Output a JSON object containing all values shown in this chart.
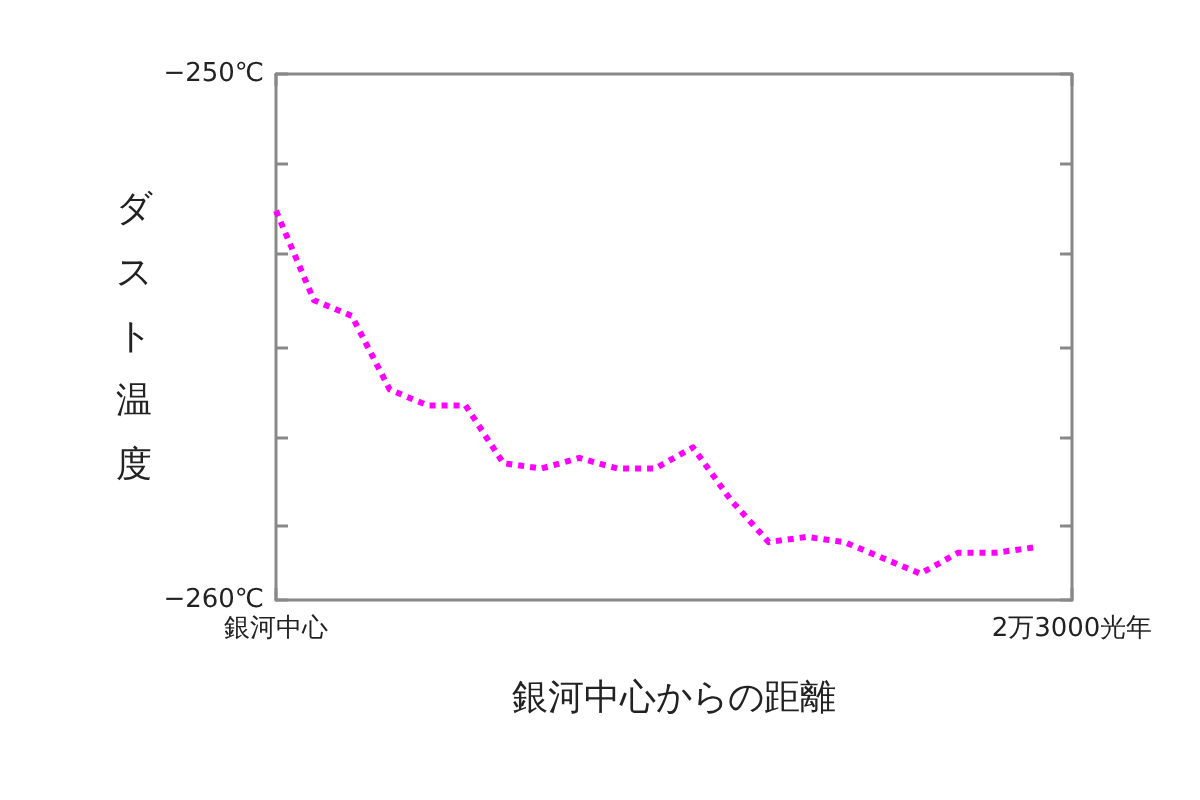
{
  "chart_data": {
    "type": "line",
    "xlabel": "銀河中心からの距離",
    "ylabel": "ダスト温度",
    "categories": [
      "銀河中心",
      null,
      null,
      null,
      null,
      null,
      null,
      null,
      null,
      null,
      null,
      null,
      null,
      null,
      null,
      null,
      null,
      null,
      null,
      null,
      null,
      "2万3000光年"
    ],
    "series": [
      {
        "color": "#ff00ff",
        "values": [
          -252.6,
          -254.3,
          -254.6,
          -256.0,
          -256.3,
          -256.3,
          -257.4,
          -257.5,
          -257.3,
          -257.5,
          -257.5,
          -257.1,
          -258.1,
          -258.9,
          -258.8,
          -258.9,
          -259.2,
          -259.5,
          -259.1,
          -259.1,
          -259.0,
          null
        ]
      }
    ],
    "ylim": [
      -260,
      -250
    ],
    "yticks": [
      {
        "value": -260,
        "label": "−260℃"
      },
      {
        "value": -258.6,
        "label": null
      },
      {
        "value": -256.9,
        "label": null
      },
      {
        "value": -255.2,
        "label": null
      },
      {
        "value": -253.4,
        "label": null
      },
      {
        "value": -251.7,
        "label": null
      },
      {
        "value": -250,
        "label": "−250℃"
      }
    ],
    "grid": false,
    "line_style": "dotted"
  }
}
